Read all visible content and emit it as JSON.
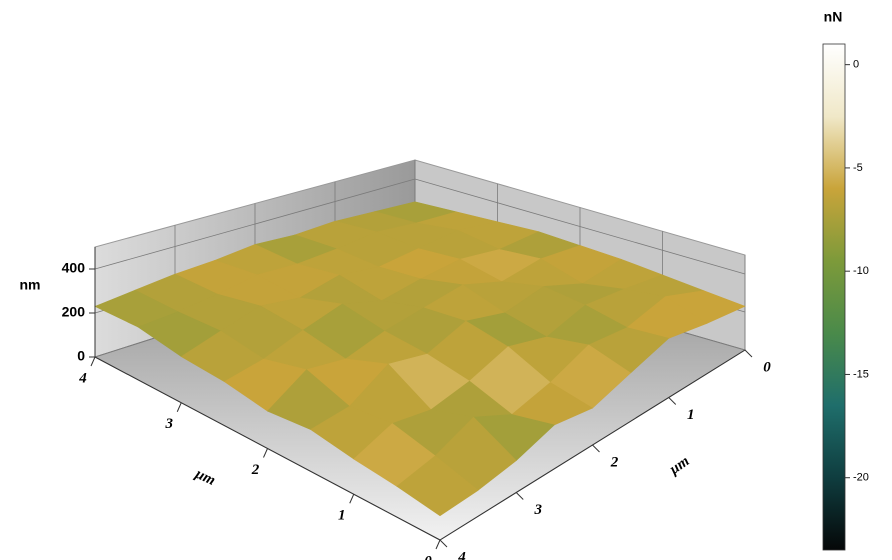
{
  "chart_data": {
    "type": "surface",
    "x_label": "μm",
    "y_label": "μm",
    "z_label": "nm",
    "colorbar_label": "nN",
    "x": [
      0,
      0.5,
      1,
      1.5,
      2,
      2.5,
      3,
      3.5,
      4
    ],
    "y": [
      0,
      0.5,
      1,
      1.5,
      2,
      2.5,
      3,
      3.5,
      4
    ],
    "xlim": [
      0,
      4
    ],
    "ylim": [
      0,
      4
    ],
    "zlim": [
      0,
      500
    ],
    "xticks": [
      0,
      1,
      2,
      3,
      4
    ],
    "yticks": [
      0,
      1,
      2,
      3,
      4
    ],
    "zticks": [
      0,
      200,
      400
    ],
    "z": [
      [
        230,
        260,
        300,
        240,
        180,
        210,
        150,
        120,
        110
      ],
      [
        250,
        330,
        280,
        300,
        220,
        170,
        260,
        180,
        140
      ],
      [
        270,
        300,
        320,
        260,
        310,
        240,
        200,
        230,
        160
      ],
      [
        290,
        260,
        340,
        300,
        350,
        280,
        320,
        210,
        190
      ],
      [
        300,
        320,
        290,
        360,
        330,
        300,
        250,
        280,
        170
      ],
      [
        310,
        300,
        330,
        310,
        280,
        340,
        290,
        230,
        200
      ],
      [
        300,
        330,
        310,
        290,
        320,
        280,
        310,
        260,
        210
      ],
      [
        290,
        300,
        320,
        300,
        290,
        300,
        270,
        250,
        240
      ],
      [
        280,
        290,
        300,
        290,
        300,
        280,
        270,
        250,
        230
      ]
    ],
    "force": [
      [
        -5,
        -7,
        -4,
        -8,
        -6,
        -9,
        -5,
        -7,
        -6
      ],
      [
        -8,
        -4,
        -9,
        -6,
        -3,
        -7,
        -10,
        -5,
        -8
      ],
      [
        -6,
        -9,
        -5,
        -10,
        -7,
        -4,
        -8,
        -6,
        -4
      ],
      [
        -4,
        -7,
        -8,
        -5,
        -9,
        -6,
        -3,
        -9,
        -7
      ],
      [
        -9,
        -5,
        -6,
        -8,
        -4,
        -10,
        -7,
        -5,
        -8
      ],
      [
        -7,
        -8,
        -4,
        -7,
        -9,
        -5,
        -8,
        -6,
        -5
      ],
      [
        -5,
        -6,
        -9,
        -4,
        -6,
        -8,
        -5,
        -9,
        -7
      ],
      [
        -8,
        -7,
        -5,
        -9,
        -7,
        -4,
        -8,
        -6,
        -9
      ],
      [
        -6,
        -9,
        -7,
        -6,
        -8,
        -7,
        -6,
        -8,
        -7
      ]
    ],
    "clim": [
      -23.5,
      1
    ],
    "cticks": [
      0,
      -5,
      -10,
      -15,
      -20
    ],
    "colormap": [
      "#050708",
      "#0f3d3f",
      "#1f6e6b",
      "#4a8a4a",
      "#7d9a3a",
      "#c9a43a",
      "#f0e8c8",
      "#ffffff"
    ],
    "wall_color": "#c8c8c8",
    "grid": true
  }
}
